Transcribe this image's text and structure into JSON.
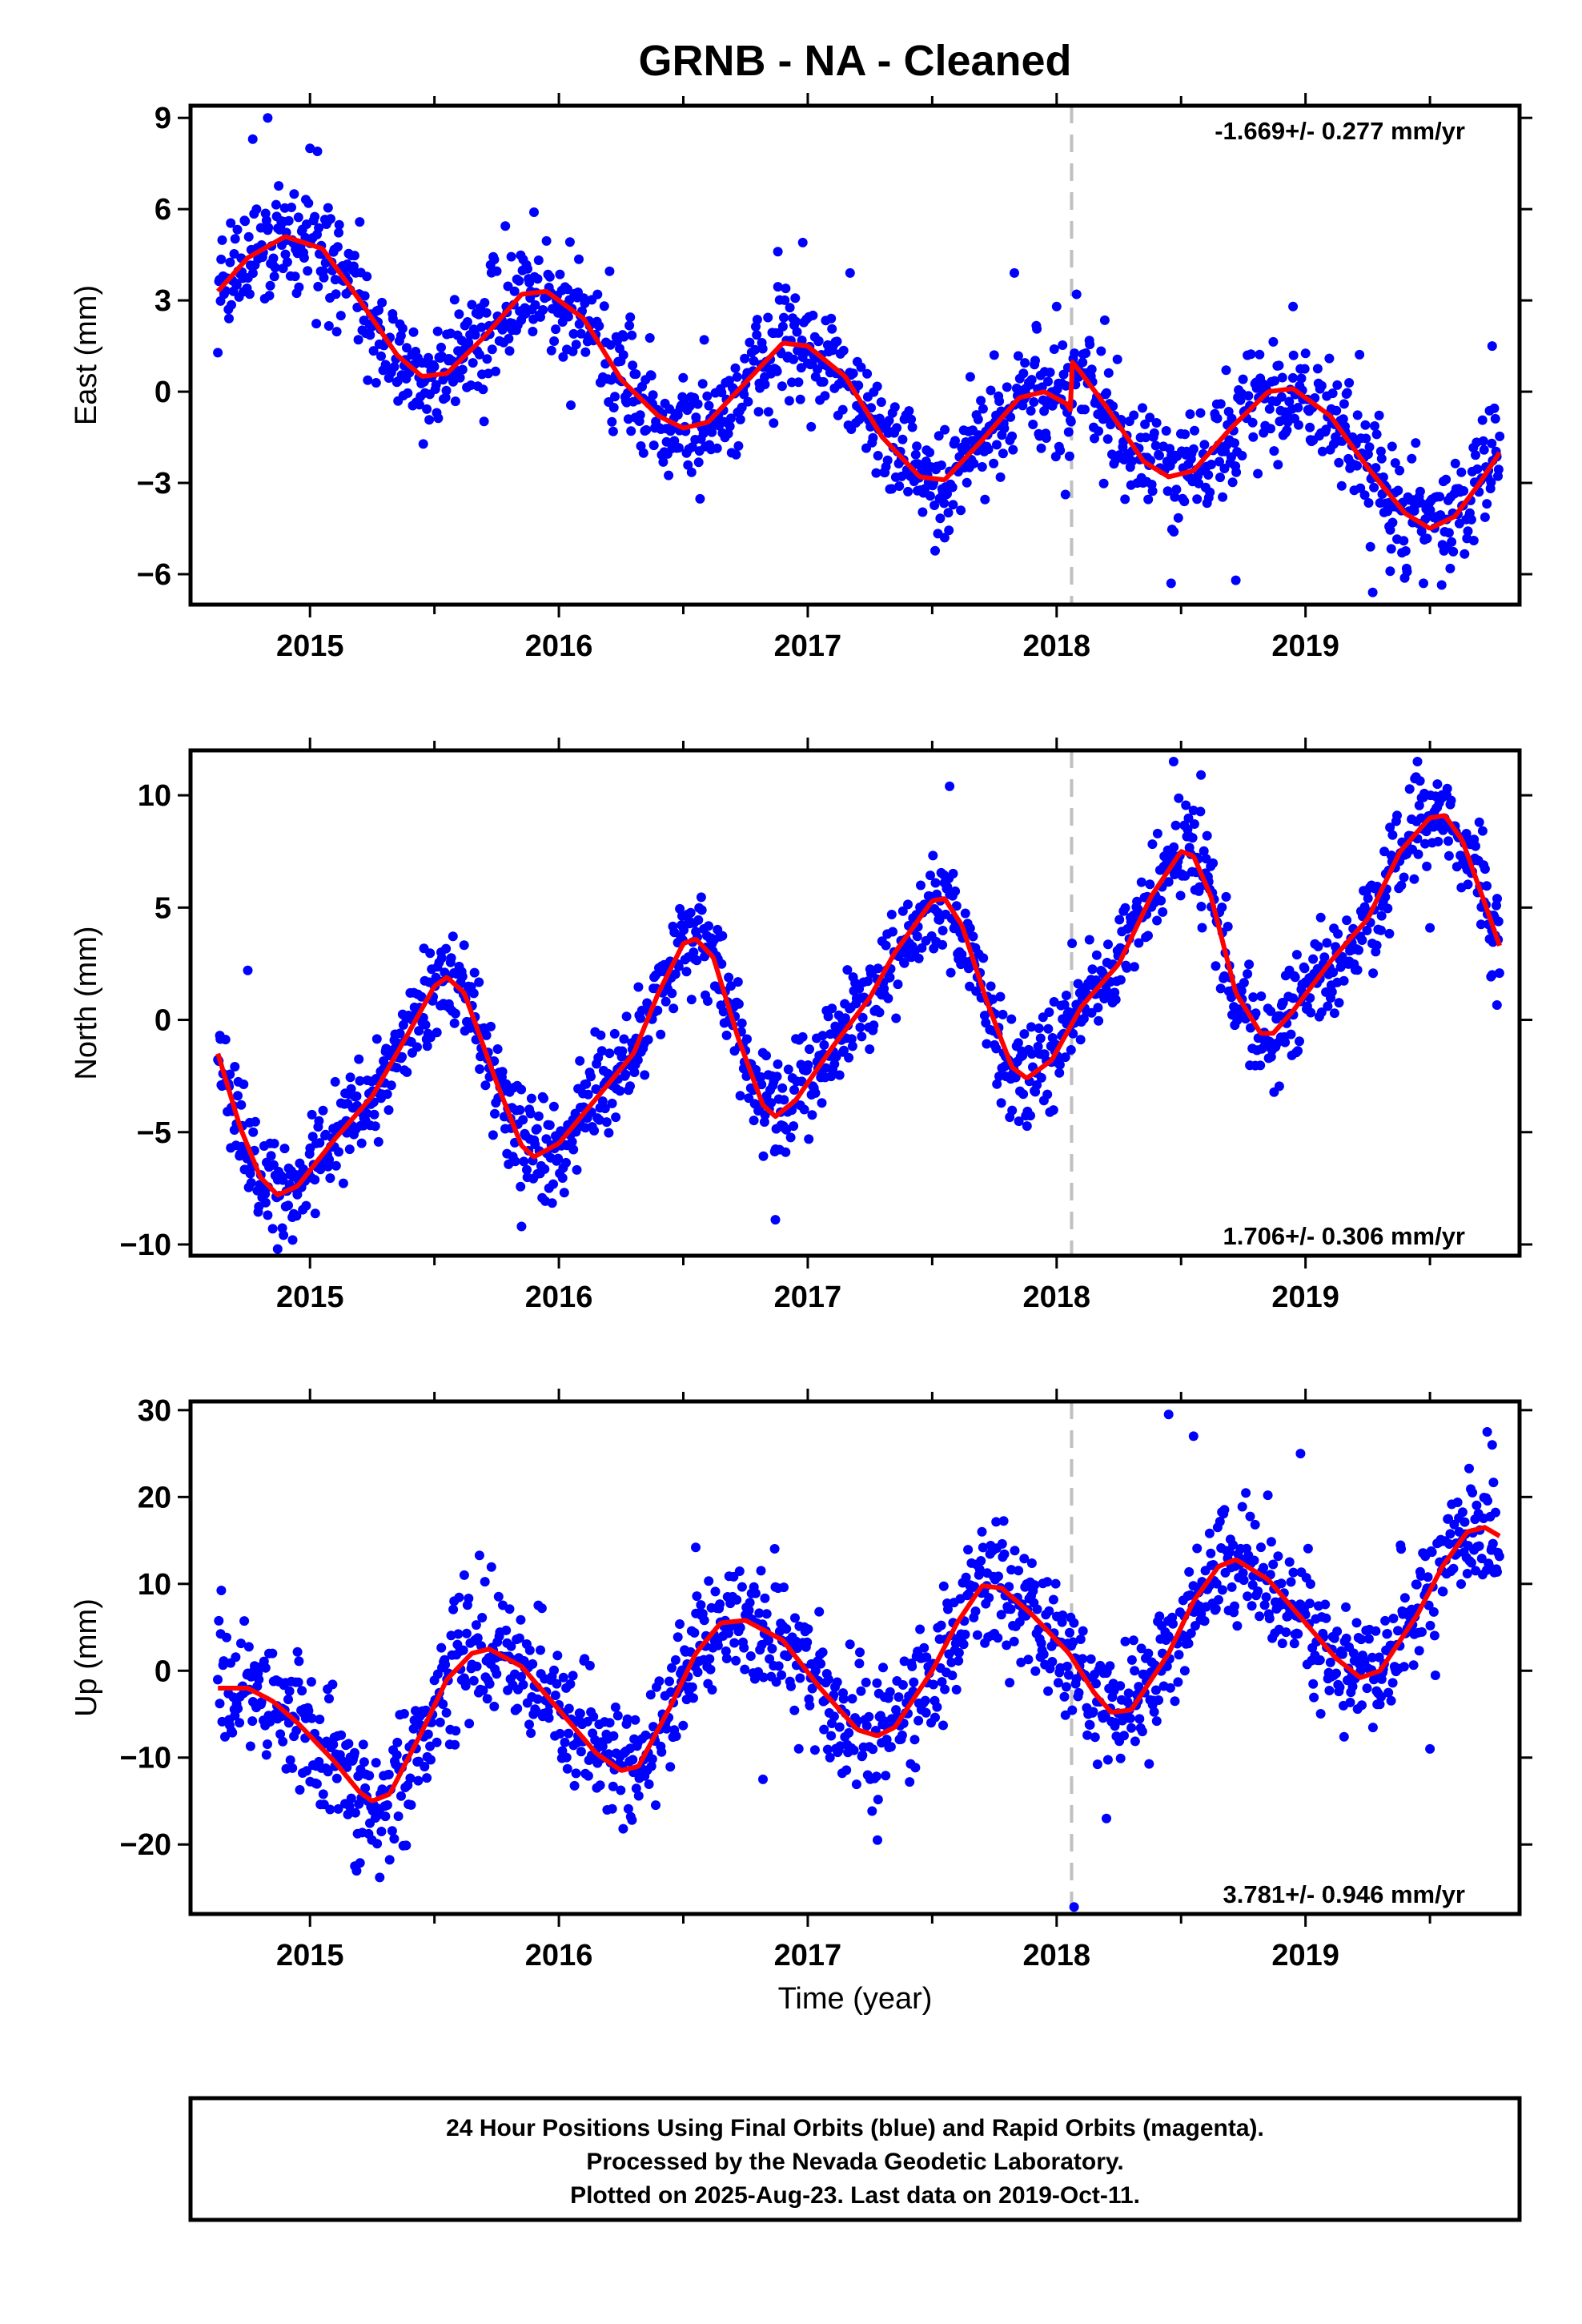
{
  "title": "GRNB  - NA - Cleaned",
  "xlabel": "Time (year)",
  "colors": {
    "final_orbits": "#0000ff",
    "model_fit": "#ff0000",
    "event_line": "#c0c0c0"
  },
  "caption": [
    "24 Hour Positions Using Final Orbits (blue) and Rapid Orbits (magenta).",
    "Processed by the Nevada Geodetic Laboratory.",
    "Plotted on 2025-Aug-23. Last data on 2019-Oct-11."
  ],
  "chart_data": [
    {
      "type": "scatter",
      "ylabel": "East (mm)",
      "rate_label": "-1.669+/- 0.277 mm/yr",
      "rate_position": "top-right",
      "xlim": [
        2014.52,
        2019.86
      ],
      "ylim": [
        -7.0,
        9.4
      ],
      "x_ticks": [
        2015,
        2016,
        2017,
        2018,
        2019
      ],
      "y_ticks": [
        -6,
        -3,
        0,
        3,
        6,
        9
      ],
      "event_line_x": 2018.06,
      "data_start": 2014.63,
      "data_end": 2019.78,
      "fit_curve": [
        [
          2014.63,
          3.3
        ],
        [
          2014.75,
          4.4
        ],
        [
          2014.9,
          5.1
        ],
        [
          2015.05,
          4.7
        ],
        [
          2015.2,
          3.0
        ],
        [
          2015.35,
          1.2
        ],
        [
          2015.45,
          0.5
        ],
        [
          2015.55,
          0.6
        ],
        [
          2015.7,
          1.8
        ],
        [
          2015.85,
          3.2
        ],
        [
          2015.95,
          3.3
        ],
        [
          2016.1,
          2.4
        ],
        [
          2016.25,
          0.4
        ],
        [
          2016.4,
          -0.8
        ],
        [
          2016.5,
          -1.2
        ],
        [
          2016.6,
          -1.0
        ],
        [
          2016.75,
          0.3
        ],
        [
          2016.9,
          1.6
        ],
        [
          2017.0,
          1.5
        ],
        [
          2017.15,
          0.5
        ],
        [
          2017.3,
          -1.5
        ],
        [
          2017.45,
          -2.8
        ],
        [
          2017.55,
          -2.9
        ],
        [
          2017.7,
          -1.6
        ],
        [
          2017.85,
          -0.2
        ],
        [
          2017.95,
          0.0
        ],
        [
          2018.04,
          -0.4
        ],
        [
          2018.055,
          -0.6
        ],
        [
          2018.06,
          1.0
        ],
        [
          2018.1,
          0.6
        ],
        [
          2018.2,
          -0.5
        ],
        [
          2018.35,
          -2.3
        ],
        [
          2018.45,
          -2.8
        ],
        [
          2018.55,
          -2.6
        ],
        [
          2018.7,
          -1.2
        ],
        [
          2018.85,
          0.0
        ],
        [
          2018.95,
          0.1
        ],
        [
          2019.1,
          -0.8
        ],
        [
          2019.25,
          -2.5
        ],
        [
          2019.4,
          -4.0
        ],
        [
          2019.5,
          -4.5
        ],
        [
          2019.6,
          -4.1
        ],
        [
          2019.7,
          -3.0
        ],
        [
          2019.78,
          -2.0
        ]
      ],
      "noise_std": 0.9,
      "outliers": [
        [
          2014.83,
          9.0
        ],
        [
          2014.77,
          8.3
        ],
        [
          2015.0,
          8.0
        ],
        [
          2015.03,
          7.9
        ],
        [
          2015.9,
          5.9
        ],
        [
          2016.88,
          4.6
        ],
        [
          2016.98,
          4.9
        ],
        [
          2017.17,
          3.9
        ],
        [
          2017.83,
          3.9
        ],
        [
          2018.0,
          2.8
        ],
        [
          2018.08,
          3.2
        ],
        [
          2018.46,
          -6.3
        ],
        [
          2018.72,
          -6.2
        ],
        [
          2019.27,
          -6.6
        ],
        [
          2019.34,
          -5.9
        ],
        [
          2019.75,
          1.5
        ],
        [
          2018.95,
          2.8
        ],
        [
          2017.55,
          -4.8
        ]
      ]
    },
    {
      "type": "scatter",
      "ylabel": "North (mm)",
      "rate_label": "1.706+/- 0.306 mm/yr",
      "rate_position": "bottom-right",
      "xlim": [
        2014.52,
        2019.86
      ],
      "ylim": [
        -10.5,
        12.0
      ],
      "x_ticks": [
        2015,
        2016,
        2017,
        2018,
        2019
      ],
      "y_ticks": [
        -10,
        -5,
        0,
        5,
        10
      ],
      "event_line_x": 2018.06,
      "data_start": 2014.63,
      "data_end": 2019.78,
      "fit_curve": [
        [
          2014.63,
          -1.5
        ],
        [
          2014.72,
          -4.8
        ],
        [
          2014.8,
          -7.0
        ],
        [
          2014.87,
          -7.8
        ],
        [
          2014.95,
          -7.4
        ],
        [
          2015.1,
          -5.3
        ],
        [
          2015.25,
          -3.4
        ],
        [
          2015.4,
          -0.5
        ],
        [
          2015.5,
          1.5
        ],
        [
          2015.55,
          1.9
        ],
        [
          2015.62,
          1.2
        ],
        [
          2015.75,
          -2.8
        ],
        [
          2015.85,
          -5.6
        ],
        [
          2015.9,
          -6.1
        ],
        [
          2016.0,
          -5.5
        ],
        [
          2016.15,
          -3.5
        ],
        [
          2016.3,
          -1.5
        ],
        [
          2016.4,
          1.2
        ],
        [
          2016.5,
          3.4
        ],
        [
          2016.55,
          3.6
        ],
        [
          2016.62,
          2.8
        ],
        [
          2016.72,
          -0.8
        ],
        [
          2016.82,
          -3.8
        ],
        [
          2016.87,
          -4.3
        ],
        [
          2016.95,
          -3.6
        ],
        [
          2017.1,
          -1.2
        ],
        [
          2017.25,
          1.0
        ],
        [
          2017.35,
          3.0
        ],
        [
          2017.5,
          5.3
        ],
        [
          2017.55,
          5.4
        ],
        [
          2017.62,
          4.2
        ],
        [
          2017.72,
          0.8
        ],
        [
          2017.82,
          -2.1
        ],
        [
          2017.88,
          -2.6
        ],
        [
          2017.98,
          -1.8
        ],
        [
          2018.1,
          0.6
        ],
        [
          2018.25,
          2.5
        ],
        [
          2018.38,
          5.5
        ],
        [
          2018.5,
          7.5
        ],
        [
          2018.55,
          7.3
        ],
        [
          2018.62,
          5.5
        ],
        [
          2018.72,
          1.2
        ],
        [
          2018.82,
          -0.6
        ],
        [
          2018.87,
          -0.6
        ],
        [
          2018.95,
          0.4
        ],
        [
          2019.1,
          2.6
        ],
        [
          2019.25,
          4.5
        ],
        [
          2019.38,
          7.5
        ],
        [
          2019.5,
          9.0
        ],
        [
          2019.56,
          9.1
        ],
        [
          2019.63,
          8.0
        ],
        [
          2019.72,
          5.2
        ],
        [
          2019.78,
          3.3
        ]
      ],
      "noise_std": 1.1,
      "outliers": [
        [
          2014.75,
          2.2
        ],
        [
          2014.93,
          -9.8
        ],
        [
          2014.87,
          -10.2
        ],
        [
          2015.85,
          -9.2
        ],
        [
          2016.87,
          -8.9
        ],
        [
          2017.57,
          10.4
        ],
        [
          2018.47,
          11.5
        ],
        [
          2018.58,
          10.9
        ],
        [
          2019.45,
          11.5
        ],
        [
          2019.53,
          10.5
        ],
        [
          2019.5,
          4.1
        ],
        [
          2019.75,
          2.0
        ],
        [
          2019.77,
          5.4
        ]
      ]
    },
    {
      "type": "scatter",
      "ylabel": "Up (mm)",
      "rate_label": "3.781+/- 0.946 mm/yr",
      "rate_position": "bottom-right",
      "xlim": [
        2014.52,
        2019.86
      ],
      "ylim": [
        -28.0,
        31.0
      ],
      "x_ticks": [
        2015,
        2016,
        2017,
        2018,
        2019
      ],
      "y_ticks": [
        -20,
        -10,
        0,
        10,
        20,
        30
      ],
      "event_line_x": 2018.06,
      "data_start": 2014.63,
      "data_end": 2019.78,
      "fit_curve": [
        [
          2014.63,
          -2.0
        ],
        [
          2014.75,
          -2.0
        ],
        [
          2014.85,
          -3.5
        ],
        [
          2014.95,
          -6.0
        ],
        [
          2015.1,
          -10.5
        ],
        [
          2015.2,
          -14.0
        ],
        [
          2015.25,
          -15.0
        ],
        [
          2015.32,
          -14.2
        ],
        [
          2015.45,
          -7.0
        ],
        [
          2015.55,
          -1.0
        ],
        [
          2015.65,
          2.0
        ],
        [
          2015.72,
          2.5
        ],
        [
          2015.85,
          0.5
        ],
        [
          2016.0,
          -4.5
        ],
        [
          2016.15,
          -9.5
        ],
        [
          2016.25,
          -11.5
        ],
        [
          2016.32,
          -11.0
        ],
        [
          2016.45,
          -4.0
        ],
        [
          2016.55,
          2.0
        ],
        [
          2016.65,
          5.5
        ],
        [
          2016.75,
          5.8
        ],
        [
          2016.9,
          3.5
        ],
        [
          2017.05,
          -2.0
        ],
        [
          2017.2,
          -6.8
        ],
        [
          2017.28,
          -7.5
        ],
        [
          2017.35,
          -6.5
        ],
        [
          2017.5,
          0.0
        ],
        [
          2017.6,
          5.5
        ],
        [
          2017.7,
          9.8
        ],
        [
          2017.78,
          9.5
        ],
        [
          2017.9,
          6.5
        ],
        [
          2018.05,
          2.0
        ],
        [
          2018.15,
          -2.5
        ],
        [
          2018.22,
          -4.8
        ],
        [
          2018.3,
          -4.5
        ],
        [
          2018.45,
          2.0
        ],
        [
          2018.55,
          8.0
        ],
        [
          2018.65,
          12.0
        ],
        [
          2018.72,
          12.8
        ],
        [
          2018.85,
          10.5
        ],
        [
          2019.0,
          5.5
        ],
        [
          2019.12,
          1.5
        ],
        [
          2019.22,
          -0.8
        ],
        [
          2019.3,
          0.0
        ],
        [
          2019.45,
          6.5
        ],
        [
          2019.55,
          12.0
        ],
        [
          2019.65,
          16.0
        ],
        [
          2019.72,
          16.5
        ],
        [
          2019.78,
          15.5
        ]
      ],
      "noise_std": 3.5,
      "outliers": [
        [
          2015.28,
          -23.8
        ],
        [
          2015.18,
          -22.5
        ],
        [
          2018.07,
          -27.2
        ],
        [
          2018.45,
          29.5
        ],
        [
          2018.55,
          27.0
        ],
        [
          2018.98,
          25.0
        ],
        [
          2019.73,
          27.5
        ],
        [
          2019.75,
          26.0
        ],
        [
          2015.62,
          11.0
        ],
        [
          2016.55,
          14.2
        ],
        [
          2017.7,
          16.0
        ],
        [
          2018.2,
          -17.0
        ],
        [
          2017.28,
          -19.5
        ],
        [
          2019.5,
          -9.0
        ],
        [
          2016.82,
          -12.5
        ]
      ]
    }
  ]
}
